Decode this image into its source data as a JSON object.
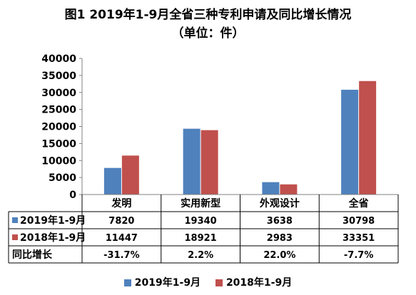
{
  "title": "图1  2019年1-9月全省三种专利申请及同比增长情况",
  "subtitle": "（单位：件）",
  "chart_data": {
    "type": "bar",
    "categories": [
      "发明",
      "实用新型",
      "外观设计",
      "全省"
    ],
    "series": [
      {
        "name": "2019年1-9月",
        "values": [
          7820,
          19340,
          3638,
          30798
        ],
        "color": "#4f81bd"
      },
      {
        "name": "2018年1-9月",
        "values": [
          11447,
          18921,
          2983,
          33351
        ],
        "color": "#c0504d"
      }
    ],
    "y_ticks": [
      "0",
      "5000",
      "10000",
      "15000",
      "20000",
      "25000",
      "30000",
      "35000",
      "40000"
    ],
    "ylim": [
      0,
      40000
    ],
    "grid": false,
    "legend_position": "bottom",
    "table": {
      "rows": [
        {
          "label": "2019年1-9月",
          "cells": [
            "7820",
            "19340",
            "3638",
            "30798"
          ],
          "swatch": "#4f81bd"
        },
        {
          "label": "2018年1-9月",
          "cells": [
            "11447",
            "18921",
            "2983",
            "33351"
          ],
          "swatch": "#c0504d"
        },
        {
          "label": "同比增长",
          "cells": [
            "-31.7%",
            "2.2%",
            "22.0%",
            "-7.7%"
          ],
          "swatch": ""
        }
      ]
    }
  }
}
